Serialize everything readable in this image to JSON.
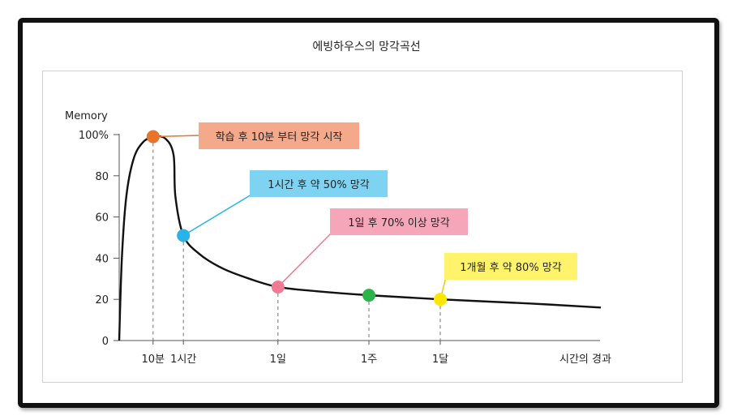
{
  "chart_data": {
    "type": "line",
    "title": "에빙하우스의 망각곡선",
    "ylabel": "Memory",
    "xlabel": "시간의 경과",
    "ylim": [
      0,
      100
    ],
    "y_ticks": [
      "100%",
      "80",
      "60",
      "40",
      "20",
      "0"
    ],
    "x_ticks": [
      "10분",
      "1시간",
      "1일",
      "1주",
      "1달"
    ],
    "series": [
      {
        "values": [
          0,
          40,
          70,
          88,
          96,
          99,
          98,
          90,
          70,
          51,
          42,
          35,
          30,
          26,
          24,
          22,
          20,
          18,
          16
        ],
        "x": [
          0,
          0.15,
          0.4,
          0.8,
          1.3,
          1.9,
          2.6,
          3.05,
          3.15,
          3.6,
          4.5,
          5.8,
          7.3,
          8.9,
          11,
          14,
          18,
          23,
          27
        ]
      }
    ],
    "x_tick_positions": [
      1.9,
      3.6,
      8.9,
      14,
      18
    ],
    "points": [
      {
        "x": 1.9,
        "y": 99,
        "color": "#e8732a"
      },
      {
        "x": 3.6,
        "y": 51,
        "color": "#29b3e8"
      },
      {
        "x": 8.9,
        "y": 26,
        "color": "#f07a93"
      },
      {
        "x": 14,
        "y": 22,
        "color": "#2db34a"
      },
      {
        "x": 18,
        "y": 20,
        "color": "#ffe600"
      }
    ],
    "annotations": [
      {
        "text": "학습 후 10분 부터 망각 시작",
        "bg": "#f4a98a",
        "line": "#e8732a"
      },
      {
        "text": "1시간 후 약 50% 망각",
        "bg": "#7fd3f2",
        "line": "#29b3e8"
      },
      {
        "text": "1일 후 70% 이상 망각",
        "bg": "#f5a6b8",
        "line": "#f07a93"
      },
      {
        "text": "1개월 후 약 80% 망각",
        "bg": "#fff36b",
        "line": "#e6cf00"
      }
    ]
  }
}
